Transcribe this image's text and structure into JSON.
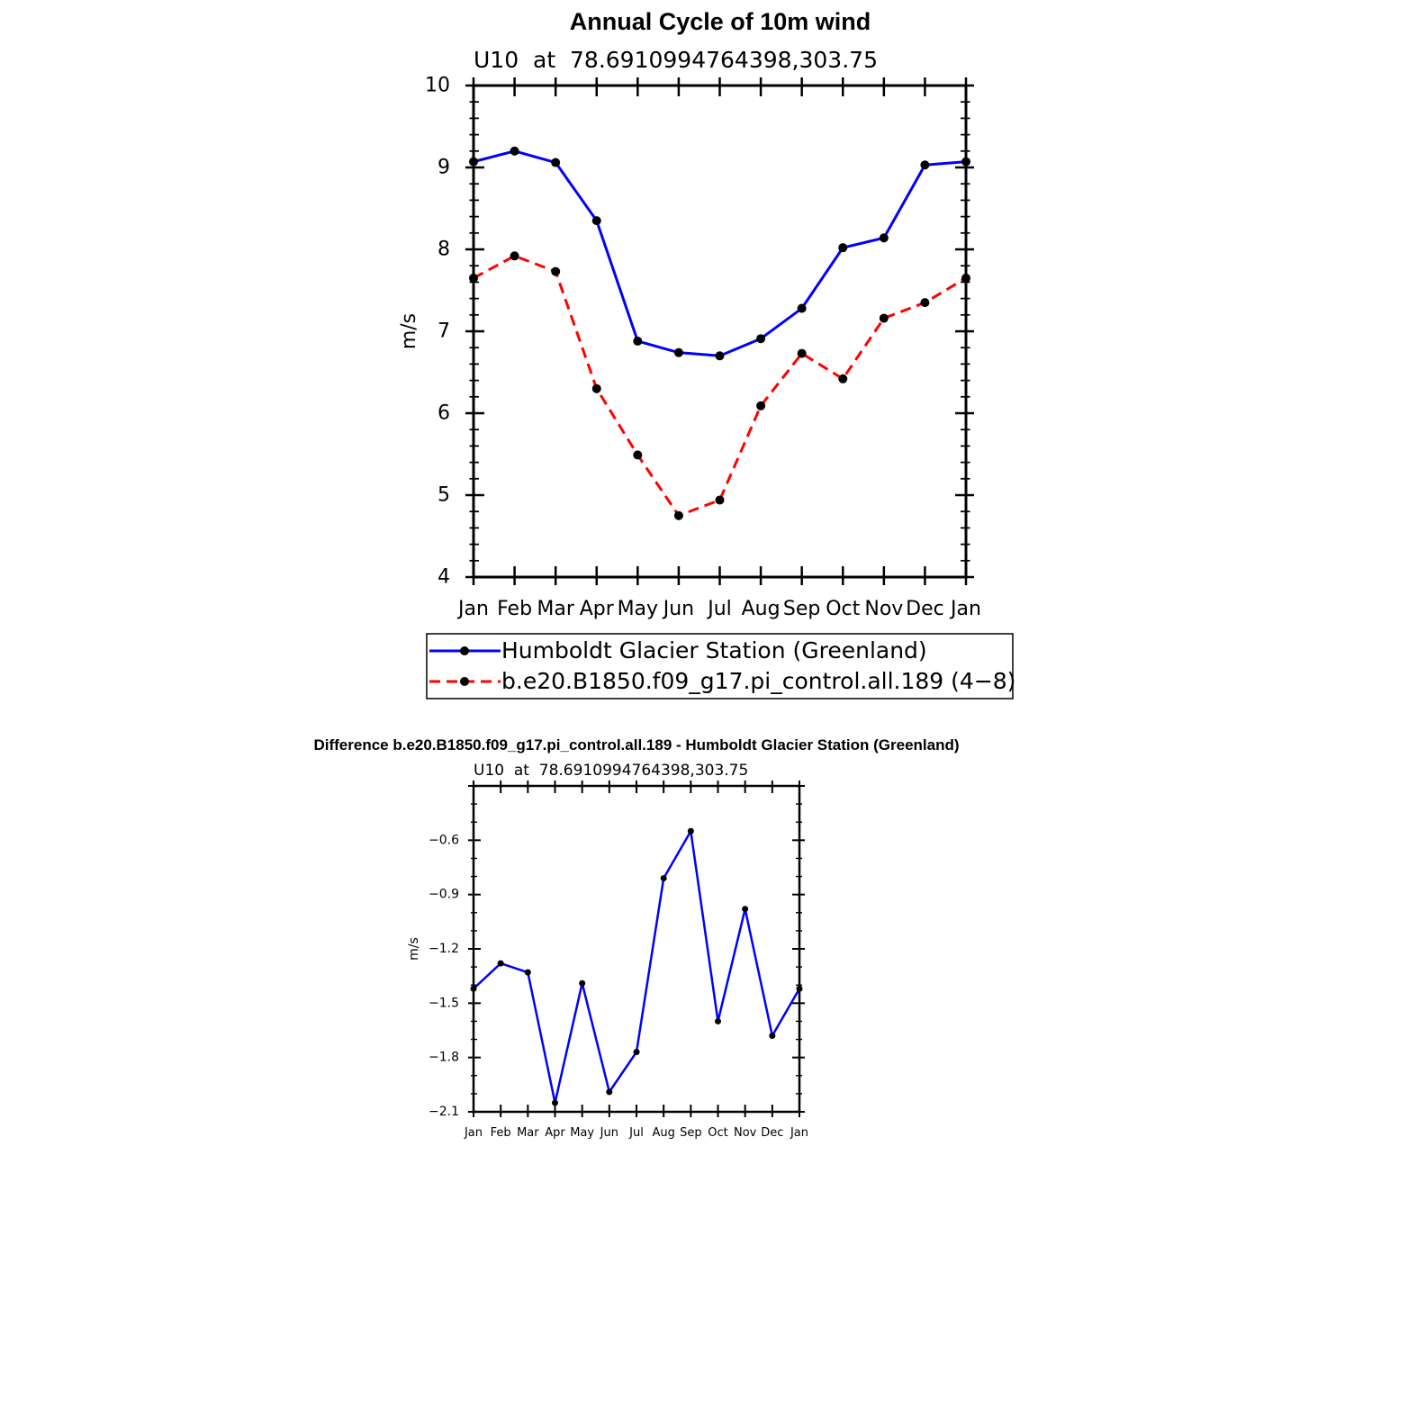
{
  "chart_data": [
    {
      "type": "line",
      "title": "Annual Cycle of 10m wind",
      "subtitle": "U10  at  78.6910994764398,303.75",
      "xlabel": "",
      "ylabel": "m/s",
      "categories": [
        "Jan",
        "Feb",
        "Mar",
        "Apr",
        "May",
        "Jun",
        "Jul",
        "Aug",
        "Sep",
        "Oct",
        "Nov",
        "Dec",
        "Jan"
      ],
      "ylim": [
        4,
        10
      ],
      "yticks": [
        "4",
        "5",
        "6",
        "7",
        "8",
        "9",
        "10"
      ],
      "grid": false,
      "legend_position": "bottom",
      "series": [
        {
          "name": "Humboldt Glacier Station (Greenland)",
          "color": "#0000ff",
          "dash": "solid",
          "values": [
            9.07,
            9.2,
            9.06,
            8.35,
            6.88,
            6.74,
            6.7,
            6.91,
            7.28,
            8.02,
            8.14,
            9.03,
            9.07
          ]
        },
        {
          "name": "b.e20.B1850.f09_g17.pi_control.all.189 (4−8)",
          "color": "#ff0000",
          "dash": "dashed",
          "values": [
            7.65,
            7.92,
            7.73,
            6.3,
            5.49,
            4.75,
            4.94,
            6.09,
            6.73,
            6.42,
            7.16,
            7.35,
            7.65
          ]
        }
      ]
    },
    {
      "type": "line",
      "title": "Difference b.e20.B1850.f09_g17.pi_control.all.189 - Humboldt Glacier Station (Greenland)",
      "subtitle": "U10  at  78.6910994764398,303.75",
      "xlabel": "",
      "ylabel": "m/s",
      "categories": [
        "Jan",
        "Feb",
        "Mar",
        "Apr",
        "May",
        "Jun",
        "Jul",
        "Aug",
        "Sep",
        "Oct",
        "Nov",
        "Dec",
        "Jan"
      ],
      "ylim": [
        -2.1,
        -0.3
      ],
      "yticks": [
        "−2.1",
        "−1.8",
        "−1.5",
        "−1.2",
        "−0.9",
        "−0.6"
      ],
      "grid": false,
      "series": [
        {
          "color": "#0000ff",
          "dash": "solid",
          "values": [
            -1.42,
            -1.28,
            -1.33,
            -2.05,
            -1.39,
            -1.99,
            -1.77,
            -0.81,
            -0.55,
            -1.6,
            -0.98,
            -1.68,
            -1.42
          ]
        }
      ]
    }
  ]
}
